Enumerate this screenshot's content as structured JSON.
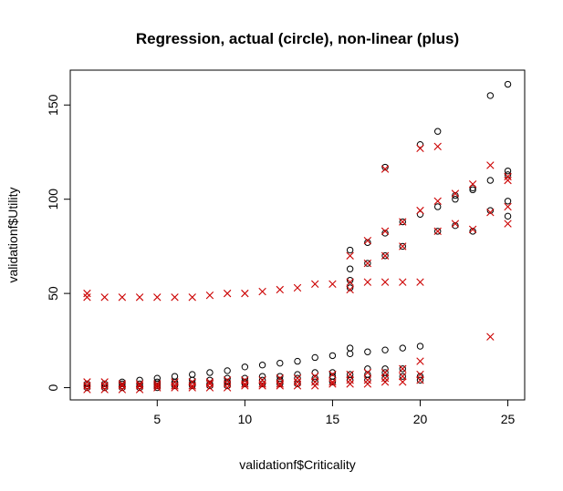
{
  "chart_data": {
    "type": "scatter",
    "title": "Regression, actual (circle), non-linear (plus)",
    "xlabel": "validationf$Criticality",
    "ylabel": "validationf$Utility",
    "xlim": [
      0.04,
      25.96
    ],
    "ylim": [
      -6.5,
      168.5
    ],
    "xticks": [
      5,
      10,
      15,
      20,
      25
    ],
    "yticks": [
      0,
      50,
      100,
      150
    ],
    "grid": false,
    "series": [
      {
        "marker": "circle",
        "color": "#000000",
        "points": [
          [
            1,
            0
          ],
          [
            1,
            1
          ],
          [
            1,
            2
          ],
          [
            2,
            0
          ],
          [
            2,
            1
          ],
          [
            2,
            2
          ],
          [
            3,
            0
          ],
          [
            3,
            1
          ],
          [
            3,
            2
          ],
          [
            3,
            3
          ],
          [
            4,
            0
          ],
          [
            4,
            1
          ],
          [
            4,
            2
          ],
          [
            4,
            4
          ],
          [
            5,
            0
          ],
          [
            5,
            1
          ],
          [
            5,
            2
          ],
          [
            5,
            3
          ],
          [
            5,
            5
          ],
          [
            6,
            1
          ],
          [
            6,
            2
          ],
          [
            6,
            3
          ],
          [
            6,
            6
          ],
          [
            7,
            1
          ],
          [
            7,
            2
          ],
          [
            7,
            4
          ],
          [
            7,
            7
          ],
          [
            8,
            1
          ],
          [
            8,
            2
          ],
          [
            8,
            4
          ],
          [
            8,
            8
          ],
          [
            9,
            1
          ],
          [
            9,
            3
          ],
          [
            9,
            5
          ],
          [
            9,
            9
          ],
          [
            10,
            2
          ],
          [
            10,
            3
          ],
          [
            10,
            5
          ],
          [
            10,
            11
          ],
          [
            11,
            2
          ],
          [
            11,
            4
          ],
          [
            11,
            6
          ],
          [
            11,
            12
          ],
          [
            12,
            2
          ],
          [
            12,
            4
          ],
          [
            12,
            6
          ],
          [
            12,
            13
          ],
          [
            13,
            2
          ],
          [
            13,
            5
          ],
          [
            13,
            7
          ],
          [
            13,
            14
          ],
          [
            14,
            3
          ],
          [
            14,
            5
          ],
          [
            14,
            8
          ],
          [
            14,
            16
          ],
          [
            15,
            3
          ],
          [
            15,
            6
          ],
          [
            15,
            8
          ],
          [
            15,
            17
          ],
          [
            16,
            4
          ],
          [
            16,
            7
          ],
          [
            16,
            18
          ],
          [
            16,
            21
          ],
          [
            16,
            53
          ],
          [
            16,
            57
          ],
          [
            16,
            63
          ],
          [
            16,
            73
          ],
          [
            17,
            4
          ],
          [
            17,
            7
          ],
          [
            17,
            10
          ],
          [
            17,
            19
          ],
          [
            17,
            66
          ],
          [
            17,
            77
          ],
          [
            18,
            5
          ],
          [
            18,
            8
          ],
          [
            18,
            10
          ],
          [
            18,
            20
          ],
          [
            18,
            70
          ],
          [
            18,
            82
          ],
          [
            18,
            117
          ],
          [
            19,
            6
          ],
          [
            19,
            10
          ],
          [
            19,
            21
          ],
          [
            19,
            75
          ],
          [
            19,
            88
          ],
          [
            20,
            4
          ],
          [
            20,
            6
          ],
          [
            20,
            22
          ],
          [
            20,
            92
          ],
          [
            20,
            129
          ],
          [
            21,
            83
          ],
          [
            21,
            96
          ],
          [
            21,
            136
          ],
          [
            22,
            86
          ],
          [
            22,
            100
          ],
          [
            22,
            102
          ],
          [
            23,
            83
          ],
          [
            23,
            105
          ],
          [
            23,
            106
          ],
          [
            24,
            94
          ],
          [
            24,
            110
          ],
          [
            24,
            155
          ],
          [
            25,
            91
          ],
          [
            25,
            99
          ],
          [
            25,
            113
          ],
          [
            25,
            115
          ],
          [
            25,
            161
          ]
        ]
      },
      {
        "marker": "x",
        "color": "#cc0000",
        "points": [
          [
            1,
            -1
          ],
          [
            1,
            1
          ],
          [
            1,
            3
          ],
          [
            1,
            48
          ],
          [
            1,
            50
          ],
          [
            2,
            -1
          ],
          [
            2,
            1
          ],
          [
            2,
            3
          ],
          [
            2,
            48
          ],
          [
            3,
            -1
          ],
          [
            3,
            1
          ],
          [
            3,
            2
          ],
          [
            3,
            48
          ],
          [
            4,
            -1
          ],
          [
            4,
            1
          ],
          [
            4,
            2
          ],
          [
            4,
            48
          ],
          [
            5,
            0
          ],
          [
            5,
            1
          ],
          [
            5,
            2
          ],
          [
            5,
            48
          ],
          [
            6,
            0
          ],
          [
            6,
            1
          ],
          [
            6,
            3
          ],
          [
            6,
            48
          ],
          [
            7,
            0
          ],
          [
            7,
            1
          ],
          [
            7,
            3
          ],
          [
            7,
            48
          ],
          [
            8,
            0
          ],
          [
            8,
            2
          ],
          [
            8,
            3
          ],
          [
            8,
            49
          ],
          [
            9,
            0
          ],
          [
            9,
            2
          ],
          [
            9,
            4
          ],
          [
            9,
            50
          ],
          [
            10,
            1
          ],
          [
            10,
            2
          ],
          [
            10,
            4
          ],
          [
            10,
            50
          ],
          [
            11,
            1
          ],
          [
            11,
            2
          ],
          [
            11,
            4
          ],
          [
            11,
            51
          ],
          [
            12,
            1
          ],
          [
            12,
            2
          ],
          [
            12,
            5
          ],
          [
            12,
            52
          ],
          [
            13,
            1
          ],
          [
            13,
            3
          ],
          [
            13,
            5
          ],
          [
            13,
            53
          ],
          [
            14,
            1
          ],
          [
            14,
            3
          ],
          [
            14,
            6
          ],
          [
            14,
            55
          ],
          [
            15,
            2
          ],
          [
            15,
            3
          ],
          [
            15,
            7
          ],
          [
            15,
            55
          ],
          [
            16,
            2
          ],
          [
            16,
            4
          ],
          [
            16,
            7
          ],
          [
            16,
            52
          ],
          [
            16,
            56
          ],
          [
            16,
            70
          ],
          [
            17,
            2
          ],
          [
            17,
            4
          ],
          [
            17,
            8
          ],
          [
            17,
            56
          ],
          [
            17,
            66
          ],
          [
            17,
            78
          ],
          [
            18,
            3
          ],
          [
            18,
            5
          ],
          [
            18,
            8
          ],
          [
            18,
            56
          ],
          [
            18,
            70
          ],
          [
            18,
            83
          ],
          [
            18,
            116
          ],
          [
            19,
            3
          ],
          [
            19,
            6
          ],
          [
            19,
            10
          ],
          [
            19,
            56
          ],
          [
            19,
            75
          ],
          [
            19,
            88
          ],
          [
            20,
            4
          ],
          [
            20,
            7
          ],
          [
            20,
            14
          ],
          [
            20,
            56
          ],
          [
            20,
            94
          ],
          [
            20,
            127
          ],
          [
            21,
            83
          ],
          [
            21,
            99
          ],
          [
            21,
            128
          ],
          [
            22,
            87
          ],
          [
            22,
            103
          ],
          [
            23,
            84
          ],
          [
            23,
            108
          ],
          [
            24,
            27
          ],
          [
            24,
            93
          ],
          [
            24,
            118
          ],
          [
            25,
            87
          ],
          [
            25,
            96
          ],
          [
            25,
            110
          ],
          [
            25,
            112
          ]
        ]
      }
    ]
  }
}
